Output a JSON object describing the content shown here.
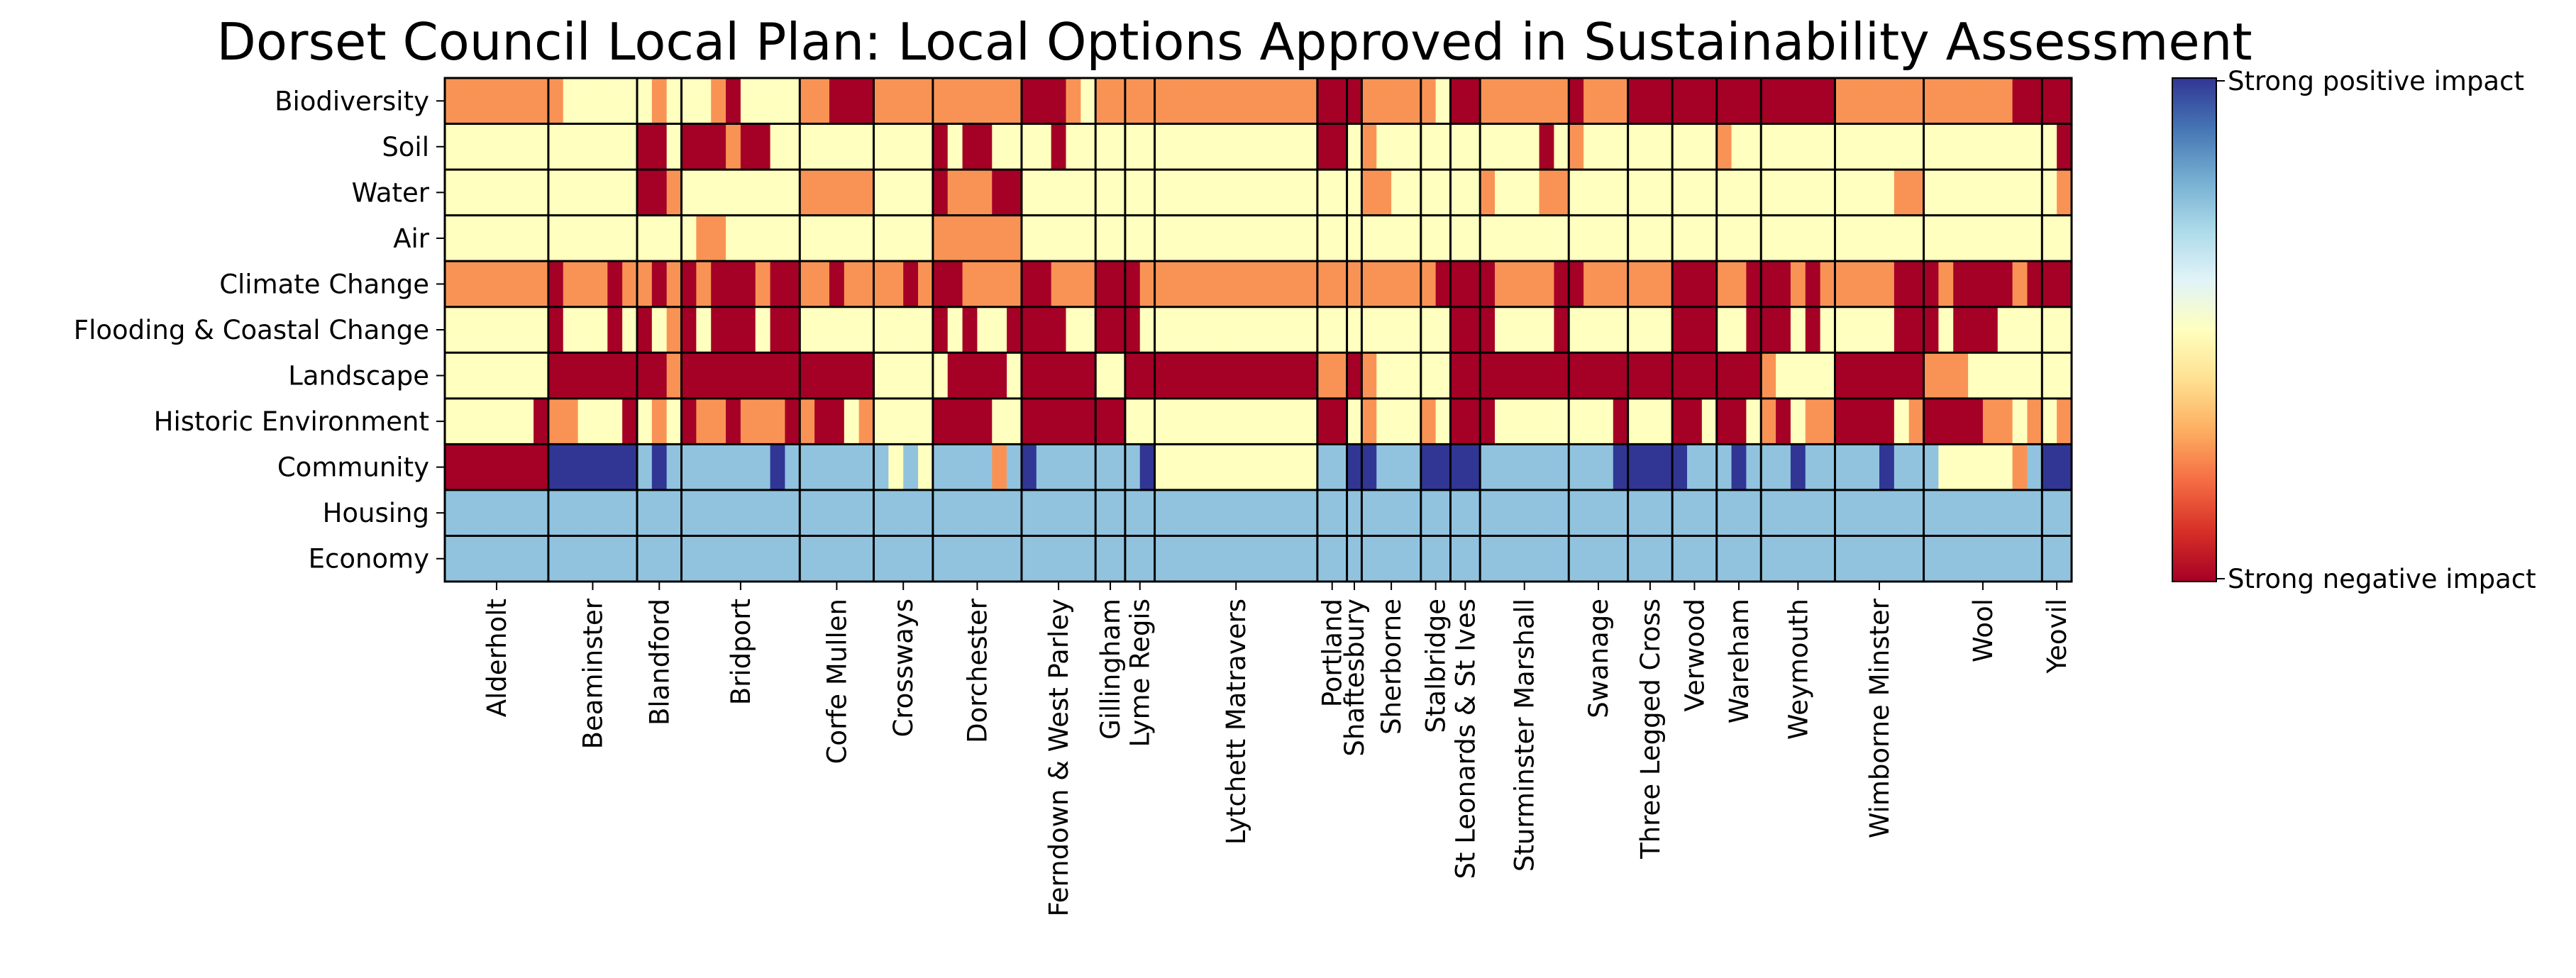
{
  "chart_data": {
    "type": "heatmap",
    "title": "Dorset Council Local Plan: Local Options Approved in Sustainability Assessment",
    "rows": [
      "Biodiversity",
      "Soil",
      "Water",
      "Air",
      "Climate Change",
      "Flooding & Coastal Change",
      "Landscape",
      "Historic Environment",
      "Community",
      "Housing",
      "Economy"
    ],
    "settlements": [
      {
        "name": "Alderholt",
        "sites": 7
      },
      {
        "name": "Beaminster",
        "sites": 6
      },
      {
        "name": "Blandford",
        "sites": 3
      },
      {
        "name": "Bridport",
        "sites": 8
      },
      {
        "name": "Corfe Mullen",
        "sites": 5
      },
      {
        "name": "Crossways",
        "sites": 4
      },
      {
        "name": "Dorchester",
        "sites": 6
      },
      {
        "name": "Ferndown & West Parley",
        "sites": 5
      },
      {
        "name": "Gillingham",
        "sites": 2
      },
      {
        "name": "Lyme Regis",
        "sites": 2
      },
      {
        "name": "Lytchett Matravers",
        "sites": 11
      },
      {
        "name": "Portland",
        "sites": 2
      },
      {
        "name": "Shaftesbury",
        "sites": 1
      },
      {
        "name": "Sherborne",
        "sites": 4
      },
      {
        "name": "Stalbridge",
        "sites": 2
      },
      {
        "name": "St Leonards & St Ives",
        "sites": 2
      },
      {
        "name": "Sturminster Marshall",
        "sites": 6
      },
      {
        "name": "Swanage",
        "sites": 4
      },
      {
        "name": "Three Legged Cross",
        "sites": 3
      },
      {
        "name": "Verwood",
        "sites": 3
      },
      {
        "name": "Wareham",
        "sites": 3
      },
      {
        "name": "Weymouth",
        "sites": 5
      },
      {
        "name": "Wimborne Minster",
        "sites": 6
      },
      {
        "name": "Wool",
        "sites": 8
      },
      {
        "name": "Yeovil",
        "sites": 2
      }
    ],
    "value_codes": {
      "-2": "strong negative",
      "-1": "negative",
      "0": "neutral",
      "1": "positive",
      "2": "strong positive"
    },
    "values": [
      [
        -1,
        -1,
        -1,
        -1,
        -1,
        -1,
        -1,
        -1,
        0,
        0,
        0,
        0,
        0,
        0,
        -1,
        0,
        0,
        0,
        -1,
        -2,
        0,
        0,
        0,
        0,
        -1,
        -1,
        -2,
        -2,
        -2,
        -1,
        -1,
        -1,
        -1,
        -1,
        -1,
        -1,
        -1,
        -1,
        -1,
        -2,
        -2,
        -2,
        -1,
        0,
        -1,
        -1,
        -1,
        -1,
        -1,
        -1,
        -1,
        -1,
        -1,
        -1,
        -1,
        -1,
        -1,
        -1,
        -1,
        -2,
        -2,
        -2,
        -1,
        -1,
        -1,
        -1,
        -1,
        0,
        -2,
        -2,
        -1,
        -1,
        -1,
        -1,
        -1,
        -1,
        -2,
        -1,
        -1,
        -1,
        -2,
        -2,
        -2,
        -2,
        -2,
        -2,
        -2,
        -2,
        -2,
        -2,
        -2,
        -2,
        -2,
        -2,
        -1,
        -1,
        -1,
        -1,
        -1,
        -1,
        -1,
        -1,
        -1,
        -1,
        -1,
        -1,
        -2,
        -2,
        -2,
        -2
      ],
      [
        0,
        0,
        0,
        0,
        0,
        0,
        0,
        0,
        0,
        0,
        0,
        0,
        0,
        -2,
        -2,
        0,
        -2,
        -2,
        -2,
        -1,
        -2,
        -2,
        0,
        0,
        0,
        0,
        0,
        0,
        0,
        0,
        0,
        0,
        0,
        -2,
        0,
        -2,
        -2,
        0,
        0,
        0,
        0,
        -2,
        0,
        0,
        0,
        0,
        0,
        0,
        0,
        0,
        0,
        0,
        0,
        0,
        0,
        0,
        0,
        0,
        0,
        -2,
        -2,
        0,
        -1,
        0,
        0,
        0,
        0,
        0,
        0,
        0,
        0,
        0,
        0,
        0,
        -2,
        0,
        -1,
        0,
        0,
        0,
        0,
        0,
        0,
        0,
        0,
        0,
        -1,
        0,
        0,
        0,
        0,
        0,
        0,
        0,
        0,
        0,
        0,
        0,
        0,
        0,
        0,
        0,
        0,
        0,
        0,
        0,
        0,
        0,
        0,
        -2
      ],
      [
        0,
        0,
        0,
        0,
        0,
        0,
        0,
        0,
        0,
        0,
        0,
        0,
        0,
        -2,
        -2,
        -1,
        0,
        0,
        0,
        0,
        0,
        0,
        0,
        0,
        -1,
        -1,
        -1,
        -1,
        -1,
        0,
        0,
        0,
        0,
        -2,
        -1,
        -1,
        -1,
        -2,
        -2,
        0,
        0,
        0,
        0,
        0,
        0,
        0,
        0,
        0,
        0,
        0,
        0,
        0,
        0,
        0,
        0,
        0,
        0,
        0,
        0,
        0,
        0,
        0,
        -1,
        -1,
        0,
        0,
        0,
        0,
        0,
        0,
        -1,
        0,
        0,
        0,
        -1,
        -1,
        0,
        0,
        0,
        0,
        0,
        0,
        0,
        0,
        0,
        0,
        0,
        0,
        0,
        0,
        0,
        0,
        0,
        0,
        0,
        0,
        0,
        0,
        -1,
        -1,
        0,
        0,
        0,
        0,
        0,
        0,
        0,
        0,
        0,
        -1
      ],
      [
        0,
        0,
        0,
        0,
        0,
        0,
        0,
        0,
        0,
        0,
        0,
        0,
        0,
        0,
        0,
        0,
        0,
        -1,
        -1,
        0,
        0,
        0,
        0,
        0,
        0,
        0,
        0,
        0,
        0,
        0,
        0,
        0,
        0,
        -1,
        -1,
        -1,
        -1,
        -1,
        -1,
        0,
        0,
        0,
        0,
        0,
        0,
        0,
        0,
        0,
        0,
        0,
        0,
        0,
        0,
        0,
        0,
        0,
        0,
        0,
        0,
        0,
        0,
        0,
        0,
        0,
        0,
        0,
        0,
        0,
        0,
        0,
        0,
        0,
        0,
        0,
        0,
        0,
        0,
        0,
        0,
        0,
        0,
        0,
        0,
        0,
        0,
        0,
        0,
        0,
        0,
        0,
        0,
        0,
        0,
        0,
        0,
        0,
        0,
        0,
        0,
        0,
        0,
        0,
        0,
        0,
        0,
        0,
        0,
        0,
        0,
        0
      ],
      [
        -1,
        -1,
        -1,
        -1,
        -1,
        -1,
        -1,
        -2,
        -1,
        -1,
        -1,
        -2,
        -1,
        -1,
        -2,
        -1,
        -2,
        -1,
        -2,
        -2,
        -2,
        -1,
        -2,
        -2,
        -1,
        -1,
        -2,
        -1,
        -1,
        -1,
        -1,
        -2,
        -1,
        -2,
        -2,
        -1,
        -1,
        -1,
        -1,
        -2,
        -2,
        -1,
        -1,
        -1,
        -2,
        -2,
        -2,
        -1,
        -1,
        -1,
        -1,
        -1,
        -1,
        -1,
        -1,
        -1,
        -1,
        -1,
        -1,
        -1,
        -1,
        -1,
        -1,
        -1,
        -1,
        -1,
        -1,
        -2,
        -2,
        -2,
        -2,
        -1,
        -1,
        -1,
        -1,
        -2,
        -2,
        -1,
        -1,
        -1,
        -1,
        -1,
        -1,
        -2,
        -2,
        -2,
        -1,
        -1,
        -2,
        -2,
        -2,
        -1,
        -2,
        -1,
        -1,
        -1,
        -1,
        -1,
        -2,
        -2,
        -2,
        -1,
        -2,
        -2,
        -2,
        -2,
        -1,
        -2,
        -2,
        -2
      ],
      [
        0,
        0,
        0,
        0,
        0,
        0,
        0,
        -2,
        0,
        0,
        0,
        -2,
        0,
        -2,
        0,
        -1,
        -2,
        0,
        -2,
        -2,
        -2,
        0,
        -2,
        -2,
        0,
        0,
        0,
        0,
        0,
        0,
        0,
        0,
        0,
        -2,
        0,
        -2,
        0,
        0,
        -2,
        -2,
        -2,
        -2,
        0,
        0,
        -2,
        -2,
        -2,
        0,
        0,
        0,
        0,
        0,
        0,
        0,
        0,
        0,
        0,
        0,
        0,
        0,
        0,
        0,
        0,
        0,
        0,
        0,
        0,
        0,
        -2,
        -2,
        -2,
        0,
        0,
        0,
        0,
        -2,
        0,
        0,
        0,
        0,
        0,
        0,
        0,
        -2,
        -2,
        -2,
        0,
        0,
        -2,
        -2,
        -2,
        0,
        -2,
        0,
        0,
        0,
        0,
        0,
        -2,
        -2,
        -2,
        0,
        -2,
        -2,
        -2,
        0,
        0,
        0,
        0,
        0
      ],
      [
        0,
        0,
        0,
        0,
        0,
        0,
        0,
        -2,
        -2,
        -2,
        -2,
        -2,
        -2,
        -2,
        -2,
        -1,
        -2,
        -2,
        -2,
        -2,
        -2,
        -2,
        -2,
        -2,
        -2,
        -2,
        -2,
        -2,
        -2,
        0,
        0,
        0,
        0,
        0,
        -2,
        -2,
        -2,
        -2,
        0,
        -2,
        -2,
        -2,
        -2,
        -2,
        0,
        0,
        -2,
        -2,
        -2,
        -2,
        -2,
        -2,
        -2,
        -2,
        -2,
        -2,
        -2,
        -2,
        -2,
        -1,
        -1,
        -2,
        -1,
        0,
        0,
        0,
        0,
        0,
        -2,
        -2,
        -2,
        -2,
        -2,
        -2,
        -2,
        -2,
        -2,
        -2,
        -2,
        -2,
        -2,
        -2,
        -2,
        -2,
        -2,
        -2,
        -2,
        -2,
        -2,
        -1,
        0,
        0,
        0,
        0,
        -2,
        -2,
        -2,
        -2,
        -2,
        -2,
        -1,
        -1,
        -1,
        0,
        0,
        0,
        0,
        0,
        0,
        0
      ],
      [
        0,
        0,
        0,
        0,
        0,
        0,
        -2,
        -1,
        -1,
        0,
        0,
        0,
        -2,
        0,
        -1,
        0,
        -2,
        -1,
        -1,
        -2,
        -1,
        -1,
        -1,
        -2,
        -1,
        -2,
        -2,
        0,
        -1,
        0,
        0,
        0,
        0,
        -2,
        -2,
        -2,
        -2,
        0,
        0,
        -2,
        -2,
        -2,
        -2,
        -2,
        -2,
        -2,
        0,
        0,
        0,
        0,
        0,
        0,
        0,
        0,
        0,
        0,
        0,
        0,
        0,
        -2,
        -2,
        0,
        -1,
        0,
        0,
        0,
        -1,
        0,
        -2,
        -2,
        -2,
        0,
        0,
        0,
        0,
        0,
        0,
        0,
        0,
        -2,
        0,
        0,
        0,
        -2,
        -2,
        0,
        -2,
        -2,
        0,
        -1,
        -2,
        0,
        -1,
        -1,
        -2,
        -2,
        -2,
        -2,
        0,
        -1,
        -2,
        -2,
        -2,
        -2,
        -1,
        -1,
        0,
        -1,
        0,
        -1
      ],
      [
        -2,
        -2,
        -2,
        -2,
        -2,
        -2,
        -2,
        2,
        2,
        2,
        2,
        2,
        2,
        1,
        2,
        1,
        1,
        1,
        1,
        1,
        1,
        1,
        2,
        1,
        1,
        1,
        1,
        1,
        1,
        1,
        0,
        1,
        0,
        1,
        1,
        1,
        1,
        -1,
        1,
        2,
        1,
        1,
        1,
        1,
        1,
        1,
        1,
        2,
        0,
        0,
        0,
        0,
        0,
        0,
        0,
        0,
        0,
        0,
        0,
        1,
        1,
        2,
        2,
        1,
        1,
        1,
        2,
        2,
        2,
        2,
        1,
        1,
        1,
        1,
        1,
        1,
        1,
        1,
        1,
        2,
        2,
        2,
        2,
        2,
        1,
        1,
        1,
        2,
        1,
        1,
        1,
        2,
        1,
        1,
        1,
        1,
        1,
        2,
        1,
        1,
        1,
        0,
        0,
        0,
        0,
        0,
        -1,
        1,
        2,
        2
      ],
      [
        1,
        1,
        1,
        1,
        1,
        1,
        1,
        1,
        1,
        1,
        1,
        1,
        1,
        1,
        1,
        1,
        1,
        1,
        1,
        1,
        1,
        1,
        1,
        1,
        1,
        1,
        1,
        1,
        1,
        1,
        1,
        1,
        1,
        1,
        1,
        1,
        1,
        1,
        1,
        1,
        1,
        1,
        1,
        1,
        1,
        1,
        1,
        1,
        1,
        1,
        1,
        1,
        1,
        1,
        1,
        1,
        1,
        1,
        1,
        1,
        1,
        1,
        1,
        1,
        1,
        1,
        1,
        1,
        1,
        1,
        1,
        1,
        1,
        1,
        1,
        1,
        1,
        1,
        1,
        1,
        1,
        1,
        1,
        1,
        1,
        1,
        1,
        1,
        1,
        1,
        1,
        1,
        1,
        1,
        1,
        1,
        1,
        1,
        1,
        1,
        1,
        1,
        1,
        1,
        1,
        1,
        1,
        1,
        1,
        1
      ],
      [
        1,
        1,
        1,
        1,
        1,
        1,
        1,
        1,
        1,
        1,
        1,
        1,
        1,
        1,
        1,
        1,
        1,
        1,
        1,
        1,
        1,
        1,
        1,
        1,
        1,
        1,
        1,
        1,
        1,
        1,
        1,
        1,
        1,
        1,
        1,
        1,
        1,
        1,
        1,
        1,
        1,
        1,
        1,
        1,
        1,
        1,
        1,
        1,
        1,
        1,
        1,
        1,
        1,
        1,
        1,
        1,
        1,
        1,
        1,
        1,
        1,
        1,
        1,
        1,
        1,
        1,
        1,
        1,
        1,
        1,
        1,
        1,
        1,
        1,
        1,
        1,
        1,
        1,
        1,
        1,
        1,
        1,
        1,
        1,
        1,
        1,
        1,
        1,
        1,
        1,
        1,
        1,
        1,
        1,
        1,
        1,
        1,
        1,
        1,
        1,
        1,
        1,
        1,
        1,
        1,
        1,
        1,
        1,
        1,
        1
      ]
    ],
    "colorbar": {
      "top_label": "Strong positive impact",
      "bottom_label": "Strong negative impact",
      "colormap": [
        "#a50026",
        "#d73027",
        "#f46d43",
        "#fdae61",
        "#fee090",
        "#ffffbf",
        "#e0f3f8",
        "#abd9e9",
        "#74add1",
        "#4575b4",
        "#313695"
      ]
    },
    "palette": {
      "-2": "#a50026",
      "-1": "#f99355",
      "0": "#ffffbf",
      "1": "#91c3de",
      "2": "#313695"
    }
  }
}
